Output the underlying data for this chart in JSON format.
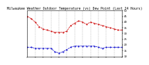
{
  "title": "Milwaukee Weather Outdoor Temperature (vs) Dew Point (Last 24 Hours)",
  "temp_values": [
    45,
    43,
    40,
    36,
    34,
    33,
    32,
    31,
    31,
    31,
    32,
    37,
    39,
    41,
    40,
    38,
    40,
    39,
    38,
    37,
    36,
    35,
    34,
    33,
    33
  ],
  "dew_values": [
    18,
    18,
    17,
    17,
    17,
    17,
    17,
    14,
    13,
    14,
    16,
    18,
    19,
    19,
    19,
    19,
    19,
    19,
    18,
    17,
    18,
    18,
    18,
    18,
    18
  ],
  "temp_color": "#cc0000",
  "dew_color": "#0000cc",
  "grid_color": "#aaaaaa",
  "ylim_min": 10,
  "ylim_max": 50,
  "yticks": [
    10,
    15,
    20,
    25,
    30,
    35,
    40,
    45,
    50
  ],
  "ytick_labels": [
    "10",
    "15",
    "20",
    "25",
    "30",
    "35",
    "40",
    "45",
    "50"
  ],
  "bg_color": "#ffffff",
  "title_fontsize": 3.5,
  "tick_fontsize": 2.8,
  "num_vgrid": 12
}
